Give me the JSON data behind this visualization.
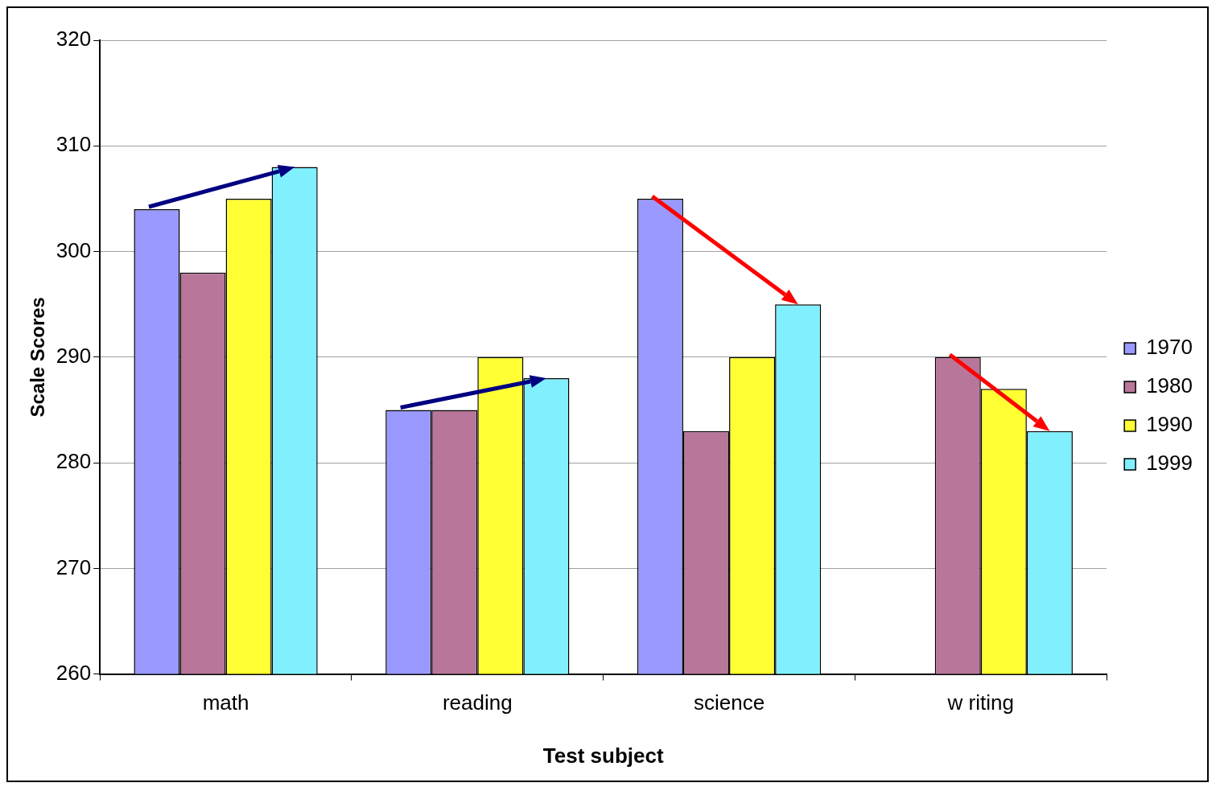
{
  "chart_data": {
    "type": "bar",
    "xlabel": "Test subject",
    "ylabel": "Scale Scores",
    "categories": [
      "math",
      "reading",
      "science",
      "w riting"
    ],
    "series": [
      {
        "name": "1970",
        "color": "#9999ff",
        "values": [
          304,
          285,
          305,
          null
        ]
      },
      {
        "name": "1980",
        "color": "#b8769a",
        "values": [
          298,
          285,
          283,
          290
        ]
      },
      {
        "name": "1990",
        "color": "#ffff33",
        "values": [
          305,
          290,
          290,
          287
        ]
      },
      {
        "name": "1999",
        "color": "#80f0ff",
        "values": [
          308,
          288,
          295,
          283
        ]
      }
    ],
    "ylim": [
      260,
      320
    ],
    "yticks": [
      260,
      270,
      280,
      290,
      300,
      310,
      320
    ],
    "grid": "y",
    "legend": "right"
  }
}
